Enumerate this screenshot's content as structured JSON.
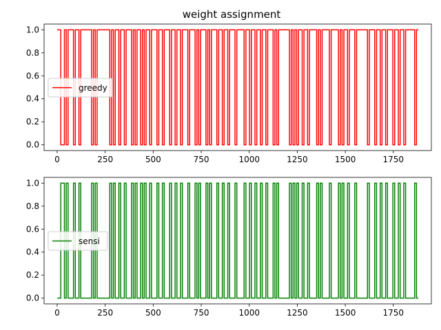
{
  "chart_data": [
    {
      "type": "line",
      "title": "weight assignment",
      "xlabel": "",
      "ylabel": "",
      "xlim": [
        -68,
        1948
      ],
      "ylim": [
        -0.05,
        1.05
      ],
      "x_ticks": [
        0,
        250,
        500,
        750,
        1000,
        1250,
        1500,
        1750
      ],
      "y_ticks": [
        0.0,
        0.2,
        0.4,
        0.6,
        0.8,
        1.0
      ],
      "legend_position": "center-left",
      "grid": false,
      "series": [
        {
          "name": "greedy",
          "color": "#ff0000",
          "x_range": [
            0,
            1880
          ],
          "values": [
            1,
            1,
            0,
            0,
            1,
            0,
            1,
            1,
            1,
            0,
            1,
            1,
            0,
            1,
            1,
            1,
            1,
            1,
            1,
            0,
            1,
            0,
            1,
            1,
            1,
            1,
            1,
            1,
            1,
            0,
            1,
            0,
            1,
            1,
            0,
            1,
            1,
            0,
            1,
            1,
            1,
            0,
            1,
            0,
            1,
            1,
            0,
            1,
            0,
            1,
            1,
            0,
            1,
            1,
            1,
            0,
            1,
            1,
            0,
            1,
            1,
            1,
            0,
            1,
            1,
            0,
            1,
            1,
            0,
            1,
            1,
            1,
            0,
            1,
            1,
            1,
            0,
            1,
            0,
            1,
            1,
            1,
            0,
            1,
            0,
            1,
            1,
            1,
            0,
            1,
            1,
            0,
            1,
            1,
            0,
            1,
            1,
            1,
            0,
            1,
            1,
            1,
            1,
            0,
            1,
            1,
            0,
            1,
            1,
            0,
            1,
            1,
            0,
            1,
            1,
            0,
            1,
            1,
            1,
            0,
            1,
            0,
            1,
            1,
            1,
            1,
            1,
            1,
            0,
            1,
            0,
            1,
            0,
            1,
            1,
            0,
            1,
            1,
            0,
            1,
            1,
            1,
            1,
            0,
            1,
            0,
            1,
            1,
            1,
            1,
            0,
            1,
            1,
            1,
            1,
            0,
            1,
            0,
            1,
            1,
            0,
            1,
            1,
            1,
            0,
            1,
            1,
            1,
            1,
            1,
            1,
            0,
            1,
            1,
            1,
            0,
            1,
            1,
            0,
            1,
            1,
            0,
            1,
            1,
            1,
            0,
            1,
            1,
            0,
            1,
            1,
            0,
            1,
            1,
            1,
            1,
            1,
            0,
            1,
            1
          ]
        },
        {
          "name": "sensi",
          "color": "#008000",
          "x_range": [
            0,
            1880
          ],
          "values": [
            0,
            0,
            1,
            1,
            0,
            1,
            0,
            0,
            0,
            1,
            0,
            0,
            1,
            0,
            0,
            0,
            0,
            0,
            0,
            1,
            0,
            1,
            0,
            0,
            0,
            0,
            0,
            0,
            0,
            1,
            0,
            1,
            0,
            0,
            1,
            0,
            0,
            1,
            0,
            0,
            0,
            1,
            0,
            1,
            0,
            0,
            1,
            0,
            1,
            0,
            0,
            1,
            0,
            0,
            0,
            1,
            0,
            0,
            1,
            0,
            0,
            0,
            1,
            0,
            0,
            1,
            0,
            0,
            1,
            0,
            0,
            0,
            1,
            0,
            0,
            0,
            1,
            0,
            1,
            0,
            0,
            0,
            1,
            0,
            1,
            0,
            0,
            0,
            1,
            0,
            0,
            1,
            0,
            0,
            1,
            0,
            0,
            0,
            1,
            0,
            0,
            0,
            0,
            1,
            0,
            0,
            1,
            0,
            0,
            1,
            0,
            0,
            1,
            0,
            0,
            1,
            0,
            0,
            0,
            1,
            0,
            1,
            0,
            0,
            0,
            0,
            0,
            0,
            1,
            0,
            1,
            0,
            1,
            0,
            0,
            1,
            0,
            0,
            1,
            0,
            0,
            0,
            0,
            1,
            0,
            1,
            0,
            0,
            0,
            0,
            1,
            0,
            0,
            0,
            0,
            1,
            0,
            1,
            0,
            0,
            1,
            0,
            0,
            0,
            1,
            0,
            0,
            0,
            0,
            0,
            0,
            1,
            0,
            0,
            0,
            1,
            0,
            0,
            1,
            0,
            0,
            1,
            0,
            0,
            0,
            1,
            0,
            0,
            1,
            0,
            0,
            1,
            0,
            0,
            0,
            0,
            0,
            1,
            0,
            0
          ]
        }
      ]
    }
  ]
}
